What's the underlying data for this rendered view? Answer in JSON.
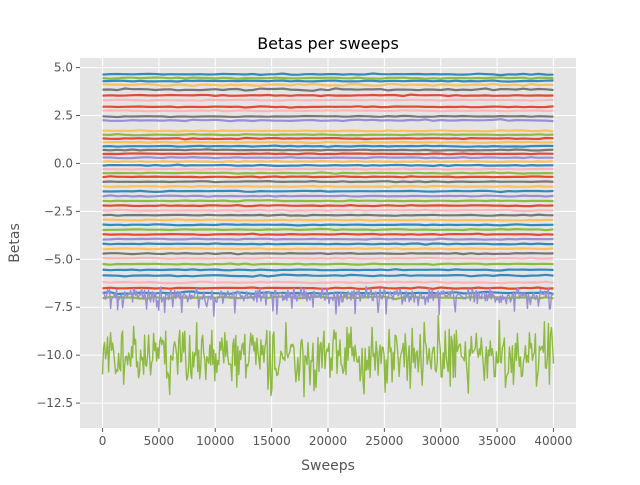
{
  "chart_data": {
    "type": "line",
    "title": "Betas per sweeps",
    "xlabel": "Sweeps",
    "ylabel": "Betas",
    "xlim": [
      -2000,
      42000
    ],
    "ylim": [
      -13.8,
      5.5
    ],
    "grid": true,
    "style": "ggplot",
    "x_ticks": [
      0,
      5000,
      10000,
      15000,
      20000,
      25000,
      30000,
      35000,
      40000
    ],
    "x_tick_labels": [
      "0",
      "5000",
      "10000",
      "15000",
      "20000",
      "25000",
      "30000",
      "35000",
      "40000"
    ],
    "y_ticks": [
      5.0,
      2.5,
      0.0,
      -2.5,
      -5.0,
      -7.5,
      -10.0,
      -12.5
    ],
    "y_tick_labels": [
      "5.0",
      "2.5",
      "0.0",
      "−2.5",
      "−5.0",
      "−7.5",
      "−10.0",
      "−12.5"
    ],
    "x_range": [
      0,
      40000
    ],
    "palette": [
      "#E24A33",
      "#348ABD",
      "#988ED5",
      "#777777",
      "#FBC15E",
      "#8EBA42",
      "#FFB5B8"
    ],
    "series": [
      {
        "level": 4.65,
        "noise": 0.02,
        "color": "#348ABD"
      },
      {
        "level": 4.45,
        "noise": 0.02,
        "color": "#8EBA42"
      },
      {
        "level": 4.3,
        "noise": 0.02,
        "color": "#348ABD"
      },
      {
        "level": 4.1,
        "noise": 0.03,
        "color": "#FBC15E"
      },
      {
        "level": 3.85,
        "noise": 0.04,
        "color": "#777777"
      },
      {
        "level": 3.55,
        "noise": 0.02,
        "color": "#E24A33"
      },
      {
        "level": 3.3,
        "noise": 0.02,
        "color": "#FFB5B8"
      },
      {
        "level": 2.95,
        "noise": 0.02,
        "color": "#E24A33"
      },
      {
        "level": 2.75,
        "noise": 0.02,
        "color": "#FFB5B8"
      },
      {
        "level": 2.45,
        "noise": 0.02,
        "color": "#777777"
      },
      {
        "level": 2.25,
        "noise": 0.03,
        "color": "#988ED5"
      },
      {
        "level": 1.7,
        "noise": 0.02,
        "color": "#FBC15E"
      },
      {
        "level": 1.5,
        "noise": 0.02,
        "color": "#8EBA42"
      },
      {
        "level": 1.3,
        "noise": 0.02,
        "color": "#E24A33"
      },
      {
        "level": 1.1,
        "noise": 0.02,
        "color": "#FBC15E"
      },
      {
        "level": 0.9,
        "noise": 0.02,
        "color": "#348ABD"
      },
      {
        "level": 0.7,
        "noise": 0.02,
        "color": "#777777"
      },
      {
        "level": 0.5,
        "noise": 0.02,
        "color": "#E24A33"
      },
      {
        "level": 0.3,
        "noise": 0.02,
        "color": "#988ED5"
      },
      {
        "level": 0.1,
        "noise": 0.02,
        "color": "#FBC15E"
      },
      {
        "level": -0.1,
        "noise": 0.02,
        "color": "#348ABD"
      },
      {
        "level": -0.3,
        "noise": 0.02,
        "color": "#FFB5B8"
      },
      {
        "level": -0.5,
        "noise": 0.02,
        "color": "#8EBA42"
      },
      {
        "level": -0.7,
        "noise": 0.02,
        "color": "#E24A33"
      },
      {
        "level": -0.95,
        "noise": 0.02,
        "color": "#777777"
      },
      {
        "level": -1.2,
        "noise": 0.02,
        "color": "#FBC15E"
      },
      {
        "level": -1.45,
        "noise": 0.02,
        "color": "#348ABD"
      },
      {
        "level": -1.7,
        "noise": 0.02,
        "color": "#988ED5"
      },
      {
        "level": -1.95,
        "noise": 0.02,
        "color": "#8EBA42"
      },
      {
        "level": -2.2,
        "noise": 0.02,
        "color": "#E24A33"
      },
      {
        "level": -2.45,
        "noise": 0.02,
        "color": "#FFB5B8"
      },
      {
        "level": -2.7,
        "noise": 0.02,
        "color": "#777777"
      },
      {
        "level": -2.95,
        "noise": 0.02,
        "color": "#FBC15E"
      },
      {
        "level": -3.2,
        "noise": 0.02,
        "color": "#348ABD"
      },
      {
        "level": -3.45,
        "noise": 0.02,
        "color": "#8EBA42"
      },
      {
        "level": -3.7,
        "noise": 0.02,
        "color": "#E24A33"
      },
      {
        "level": -3.95,
        "noise": 0.02,
        "color": "#988ED5"
      },
      {
        "level": -4.2,
        "noise": 0.02,
        "color": "#348ABD"
      },
      {
        "level": -4.45,
        "noise": 0.02,
        "color": "#FBC15E"
      },
      {
        "level": -4.7,
        "noise": 0.02,
        "color": "#777777"
      },
      {
        "level": -4.95,
        "noise": 0.02,
        "color": "#FFB5B8"
      },
      {
        "level": -5.25,
        "noise": 0.02,
        "color": "#8EBA42"
      },
      {
        "level": -5.55,
        "noise": 0.02,
        "color": "#348ABD"
      },
      {
        "level": -5.85,
        "noise": 0.03,
        "color": "#348ABD"
      },
      {
        "level": -6.2,
        "noise": 0.03,
        "color": "#FFB5B8"
      },
      {
        "level": -6.5,
        "noise": 0.03,
        "color": "#E24A33"
      },
      {
        "level": -6.75,
        "noise": 0.04,
        "color": "#348ABD"
      },
      {
        "level": -7.0,
        "noise": 0.04,
        "color": "#8EBA42"
      }
    ],
    "noisy_series": [
      {
        "level": -6.85,
        "spread": 0.45,
        "color": "#988ED5"
      },
      {
        "level": -10.1,
        "spread": 2.0,
        "color": "#8EBA42"
      }
    ]
  }
}
